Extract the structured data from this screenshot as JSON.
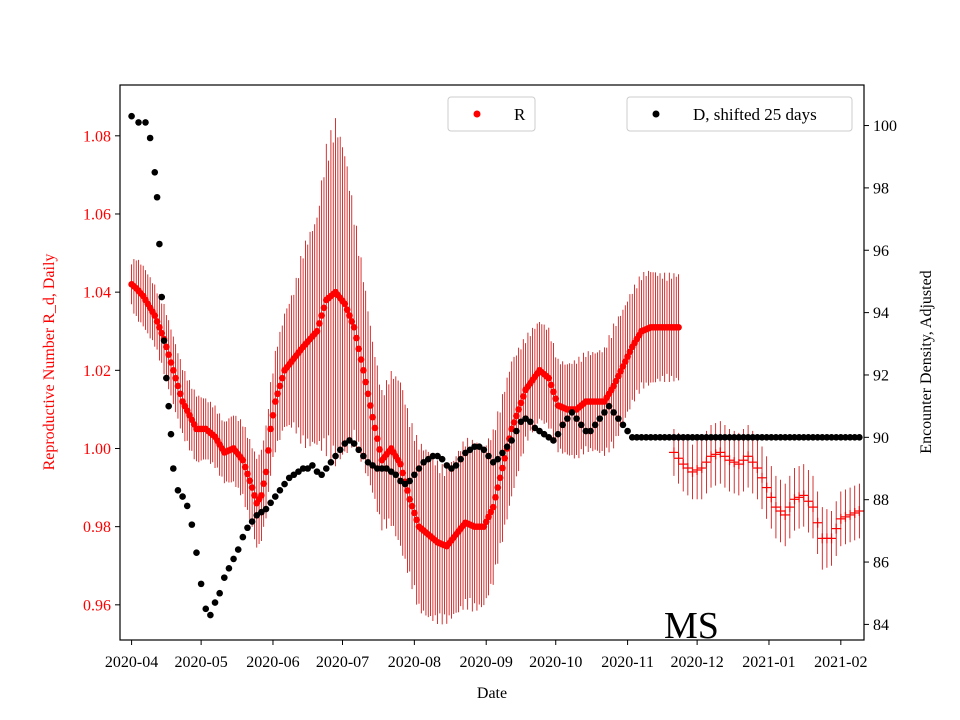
{
  "chart_data": {
    "type": "scatter",
    "xlabel": "Date",
    "ylabel_left": "Reproductive Number R_d, Daily",
    "ylabel_right": "Encounter Density, Adjusted",
    "annotation": "MS",
    "x_ticks": [
      "2020-04",
      "2020-05",
      "2020-06",
      "2020-07",
      "2020-08",
      "2020-09",
      "2020-10",
      "2020-11",
      "2020-12",
      "2021-01",
      "2021-02"
    ],
    "xlim_days": [
      -5,
      316
    ],
    "left_axis": {
      "ylim": [
        0.951,
        1.093
      ],
      "ticks": [
        0.96,
        0.98,
        1.0,
        1.02,
        1.04,
        1.06,
        1.08
      ],
      "tick_labels": [
        "0.96",
        "0.98",
        "1.00",
        "1.02",
        "1.04",
        "1.06",
        "1.08"
      ]
    },
    "right_axis": {
      "ylim": [
        83.5,
        101.3
      ],
      "ticks": [
        84,
        86,
        88,
        90,
        92,
        94,
        96,
        98,
        100
      ],
      "tick_labels": [
        "84",
        "86",
        "88",
        "90",
        "92",
        "94",
        "96",
        "98",
        "100"
      ]
    },
    "series": [
      {
        "name": "R",
        "axis": "left",
        "color": "#ff0000",
        "marker": "dot",
        "x_days": [
          0,
          2,
          5,
          8,
          10,
          14,
          18,
          22,
          28,
          32,
          36,
          40,
          44,
          48,
          52,
          54,
          56,
          58,
          60,
          62,
          66,
          70,
          74,
          80,
          84,
          88,
          92,
          96,
          100,
          104,
          108,
          112,
          116,
          120,
          124,
          128,
          132,
          136,
          140,
          144,
          148,
          152,
          156,
          160,
          164,
          170,
          176,
          180,
          184,
          188,
          192,
          196,
          200,
          204,
          206,
          208,
          212,
          216,
          220,
          224,
          228,
          232,
          236
        ],
        "values": [
          1.042,
          1.041,
          1.039,
          1.036,
          1.034,
          1.028,
          1.02,
          1.012,
          1.005,
          1.005,
          1.003,
          0.999,
          1.0,
          0.997,
          0.99,
          0.986,
          0.988,
          0.994,
          1.005,
          1.012,
          1.02,
          1.023,
          1.026,
          1.03,
          1.038,
          1.04,
          1.037,
          1.031,
          1.02,
          1.008,
          0.997,
          1.0,
          0.996,
          0.987,
          0.98,
          0.978,
          0.976,
          0.975,
          0.978,
          0.981,
          0.98,
          0.98,
          0.985,
          0.995,
          1.005,
          1.015,
          1.02,
          1.018,
          1.011,
          1.01,
          1.01,
          1.012,
          1.012,
          1.012,
          1.014,
          1.016,
          1.021,
          1.026,
          1.03,
          1.031,
          1.031,
          1.031,
          1.031
        ],
        "error_half_width": [
          0.006,
          0.008,
          0.008,
          0.008,
          0.008,
          0.009,
          0.009,
          0.009,
          0.009,
          0.008,
          0.008,
          0.008,
          0.009,
          0.01,
          0.011,
          0.012,
          0.012,
          0.012,
          0.012,
          0.013,
          0.015,
          0.018,
          0.026,
          0.03,
          0.04,
          0.045,
          0.04,
          0.03,
          0.025,
          0.02,
          0.018,
          0.02,
          0.022,
          0.021,
          0.022,
          0.022,
          0.021,
          0.02,
          0.021,
          0.022,
          0.022,
          0.021,
          0.02,
          0.019,
          0.018,
          0.014,
          0.013,
          0.013,
          0.012,
          0.012,
          0.013,
          0.013,
          0.013,
          0.014,
          0.015,
          0.016,
          0.015,
          0.015,
          0.015,
          0.015,
          0.014,
          0.014,
          0.014
        ]
      },
      {
        "name": "R (extended)",
        "axis": "left",
        "color": "#ff0000",
        "marker": "plus",
        "x_days": [
          234,
          238,
          242,
          246,
          250,
          254,
          258,
          262,
          266,
          270,
          274,
          278,
          282,
          286,
          290,
          294,
          298,
          302,
          306,
          310,
          314
        ],
        "values": [
          0.999,
          0.996,
          0.994,
          0.995,
          0.998,
          0.999,
          0.997,
          0.996,
          0.998,
          0.995,
          0.99,
          0.985,
          0.983,
          0.987,
          0.988,
          0.985,
          0.977,
          0.977,
          0.982,
          0.983,
          0.984
        ],
        "error_half_width": [
          0.006,
          0.007,
          0.007,
          0.008,
          0.008,
          0.008,
          0.008,
          0.008,
          0.008,
          0.008,
          0.008,
          0.008,
          0.008,
          0.008,
          0.008,
          0.008,
          0.008,
          0.007,
          0.007,
          0.007,
          0.007
        ]
      },
      {
        "name": "D, shifted 25 days",
        "axis": "right",
        "color": "#000000",
        "marker": "dot",
        "x_days": [
          0,
          3,
          6,
          8,
          10,
          11,
          12,
          13,
          14,
          15,
          16,
          17,
          18,
          20,
          22,
          24,
          26,
          28,
          30,
          32,
          34,
          36,
          38,
          40,
          42,
          44,
          46,
          48,
          50,
          52,
          54,
          56,
          58,
          60,
          62,
          64,
          66,
          68,
          70,
          72,
          74,
          76,
          78,
          80,
          82,
          84,
          86,
          88,
          90,
          92,
          94,
          96,
          98,
          100,
          102,
          104,
          106,
          108,
          110,
          112,
          114,
          116,
          118,
          120,
          122,
          124,
          126,
          128,
          130,
          132,
          134,
          136,
          138,
          140,
          142,
          144,
          146,
          148,
          150,
          152,
          154,
          156,
          158,
          160,
          162,
          164,
          166,
          168,
          170,
          172,
          174,
          176,
          178,
          180,
          182,
          184,
          186,
          188,
          190,
          192,
          194,
          196,
          198,
          200,
          202,
          204,
          206,
          208,
          210,
          212,
          214,
          216,
          218,
          220,
          222,
          224,
          226,
          228,
          230,
          232,
          234,
          236,
          238,
          240,
          242,
          244,
          246,
          248,
          250,
          252,
          254,
          256,
          258,
          260,
          262,
          264,
          266,
          268,
          270,
          272,
          274,
          276,
          278,
          280,
          282,
          284,
          286,
          288,
          290,
          292,
          294,
          296,
          298,
          300,
          302,
          304,
          306,
          308,
          310,
          312,
          314
        ],
        "values": [
          100.3,
          100.1,
          100.1,
          99.6,
          98.5,
          97.7,
          96.2,
          94.5,
          93.1,
          91.9,
          91.0,
          90.1,
          89.0,
          88.3,
          88.1,
          87.8,
          87.2,
          86.3,
          85.3,
          84.5,
          84.3,
          84.7,
          85.0,
          85.5,
          85.8,
          86.1,
          86.4,
          86.8,
          87.1,
          87.3,
          87.5,
          87.6,
          87.7,
          87.9,
          88.1,
          88.3,
          88.5,
          88.7,
          88.8,
          88.9,
          89.0,
          89.0,
          89.1,
          88.9,
          88.8,
          89.0,
          89.2,
          89.4,
          89.6,
          89.8,
          89.9,
          89.8,
          89.6,
          89.4,
          89.2,
          89.1,
          89.0,
          89.0,
          89.0,
          88.9,
          88.8,
          88.6,
          88.5,
          88.6,
          88.8,
          89.0,
          89.2,
          89.3,
          89.4,
          89.4,
          89.3,
          89.1,
          89.0,
          89.1,
          89.3,
          89.5,
          89.6,
          89.7,
          89.7,
          89.6,
          89.4,
          89.2,
          89.3,
          89.5,
          89.7,
          89.9,
          90.2,
          90.5,
          90.6,
          90.5,
          90.3,
          90.2,
          90.1,
          90.0,
          89.9,
          90.1,
          90.4,
          90.6,
          90.8,
          90.6,
          90.4,
          90.2,
          90.2,
          90.4,
          90.6,
          90.8,
          91.0,
          90.8,
          90.6,
          90.4,
          90.2,
          90.0,
          90.0,
          90.0,
          90.0,
          90.0,
          90.0,
          90.0,
          90.0,
          90.0,
          90.0,
          90.0,
          90.0,
          90.0,
          90.0,
          90.0,
          90.0,
          90.0,
          90.0,
          90.0,
          90.0,
          90.0,
          90.0,
          90.0,
          90.0,
          90.0,
          90.0,
          90.0,
          90.0,
          90.0,
          90.0,
          90.0,
          90.0,
          90.0,
          90.0,
          90.0,
          90.0,
          90.0,
          90.0,
          90.0,
          90.0,
          90.0,
          90.0,
          90.0,
          90.0,
          90.0,
          90.0,
          90.0,
          90.0,
          90.0,
          90.0
        ]
      }
    ],
    "legends": [
      {
        "label": "R",
        "color": "#ff0000",
        "placement": "top-center"
      },
      {
        "label": "D, shifted 25 days",
        "color": "#000000",
        "placement": "top-right"
      }
    ]
  }
}
